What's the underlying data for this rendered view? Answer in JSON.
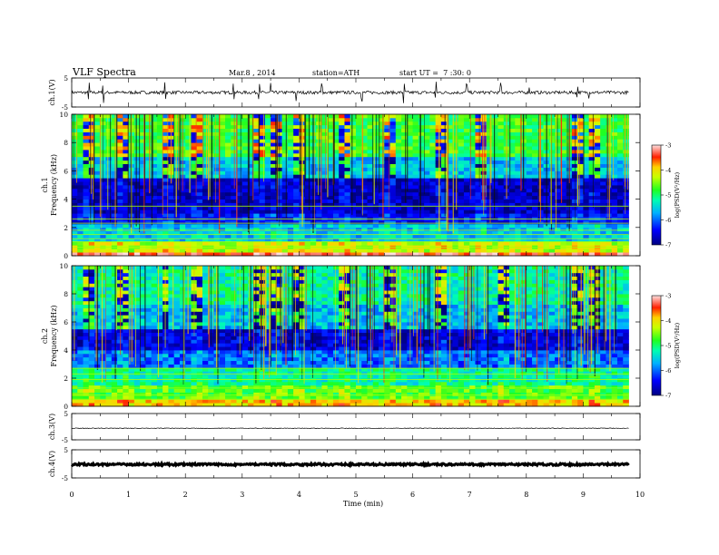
{
  "header": {
    "title": "VLF Spectra",
    "date": "Mar.8 , 2014",
    "station": "station=ATH",
    "start": "start UT =  7 :30: 0"
  },
  "chart_data": [
    {
      "type": "line",
      "name": "ch1-waveform",
      "ylabel": "ch.1(V)",
      "ylim": [
        -5,
        5
      ],
      "yticks": [
        "5",
        "-5"
      ],
      "xlim": [
        0,
        10
      ],
      "x_end": 9.8,
      "baseline": 0.0,
      "noise_amplitude": 0.55,
      "spikes": [
        0.3,
        0.55,
        1.65,
        2.85,
        3.3,
        3.5,
        3.95,
        4.4,
        5.1,
        5.85,
        6.4,
        6.95,
        7.55,
        8.05,
        8.9,
        9.1
      ]
    },
    {
      "type": "heatmap",
      "name": "ch1-spectrogram",
      "ylabel": "ch.1\nFrequency (kHz)",
      "ylim": [
        0,
        10
      ],
      "yticks": [
        "0",
        "2",
        "4",
        "6",
        "8",
        "10"
      ],
      "xlim": [
        0,
        10
      ],
      "x_end": 9.8,
      "colorbar": {
        "label": "log(PSD(V²/Hz)",
        "range": [
          -7,
          -3
        ],
        "ticks": [
          "-3",
          "-4",
          "-5",
          "-6",
          "-7"
        ]
      },
      "bands": [
        {
          "from": 0.0,
          "to": 0.3,
          "value": -3.4
        },
        {
          "from": 0.3,
          "to": 0.9,
          "value": -4.3
        },
        {
          "from": 0.9,
          "to": 2.3,
          "value": -5.6
        },
        {
          "from": 2.3,
          "to": 3.0,
          "value": -6.4
        },
        {
          "from": 3.0,
          "to": 5.6,
          "value": -6.7
        },
        {
          "from": 5.6,
          "to": 7.0,
          "value": -5.6
        },
        {
          "from": 7.0,
          "to": 10.0,
          "value": -4.8
        }
      ],
      "lines_khz": [
        0.6,
        1.0,
        1.2,
        1.5,
        1.8,
        2.3,
        2.6,
        3.5
      ],
      "bursts_min": [
        0.3,
        0.9,
        1.7,
        2.2,
        3.3,
        3.6,
        4.0,
        4.8,
        5.6,
        6.5,
        7.2,
        8.9,
        9.2
      ]
    },
    {
      "type": "heatmap",
      "name": "ch2-spectrogram",
      "ylabel": "ch.2\nFrequency (kHz)",
      "ylim": [
        0,
        10
      ],
      "yticks": [
        "0",
        "2",
        "4",
        "6",
        "8",
        "10"
      ],
      "xlim": [
        0,
        10
      ],
      "x_end": 9.8,
      "colorbar": {
        "label": "log(PSD(V²/Hz)",
        "range": [
          -7,
          -3
        ],
        "ticks": [
          "-3",
          "-4",
          "-5",
          "-6",
          "-7"
        ]
      },
      "bands": [
        {
          "from": 0.0,
          "to": 0.4,
          "value": -4.0
        },
        {
          "from": 0.4,
          "to": 1.6,
          "value": -4.7
        },
        {
          "from": 1.6,
          "to": 2.8,
          "value": -5.2
        },
        {
          "from": 2.8,
          "to": 4.0,
          "value": -6.0
        },
        {
          "from": 4.0,
          "to": 5.6,
          "value": -6.6
        },
        {
          "from": 5.6,
          "to": 7.2,
          "value": -5.6
        },
        {
          "from": 7.2,
          "to": 10.0,
          "value": -5.2
        }
      ],
      "lines_khz": [
        0.5,
        0.8,
        1.3,
        1.9,
        2.3,
        2.7
      ],
      "bursts_min": [
        0.3,
        0.9,
        1.65,
        2.2,
        3.3,
        3.6,
        4.0,
        4.8,
        5.6,
        6.5,
        7.6,
        8.9,
        9.2
      ]
    },
    {
      "type": "line",
      "name": "ch3-waveform",
      "ylabel": "ch.3(V)",
      "ylim": [
        -5,
        5
      ],
      "yticks": [
        "5",
        "-5"
      ],
      "xlim": [
        0,
        10
      ],
      "x_end": 9.8,
      "baseline": -0.6,
      "noise_amplitude": 0.12,
      "spikes": []
    },
    {
      "type": "line",
      "name": "ch4-waveform",
      "ylabel": "ch.4(V)",
      "ylim": [
        -5,
        5
      ],
      "yticks": [
        "5",
        "-5"
      ],
      "xlim": [
        0,
        10
      ],
      "x_end": 9.8,
      "baseline": -0.2,
      "noise_amplitude": 0.35,
      "spikes": []
    }
  ],
  "xaxis": {
    "label": "Time (min)",
    "ticks": [
      "0",
      "1",
      "2",
      "3",
      "4",
      "5",
      "6",
      "7",
      "8",
      "9",
      "10"
    ]
  }
}
